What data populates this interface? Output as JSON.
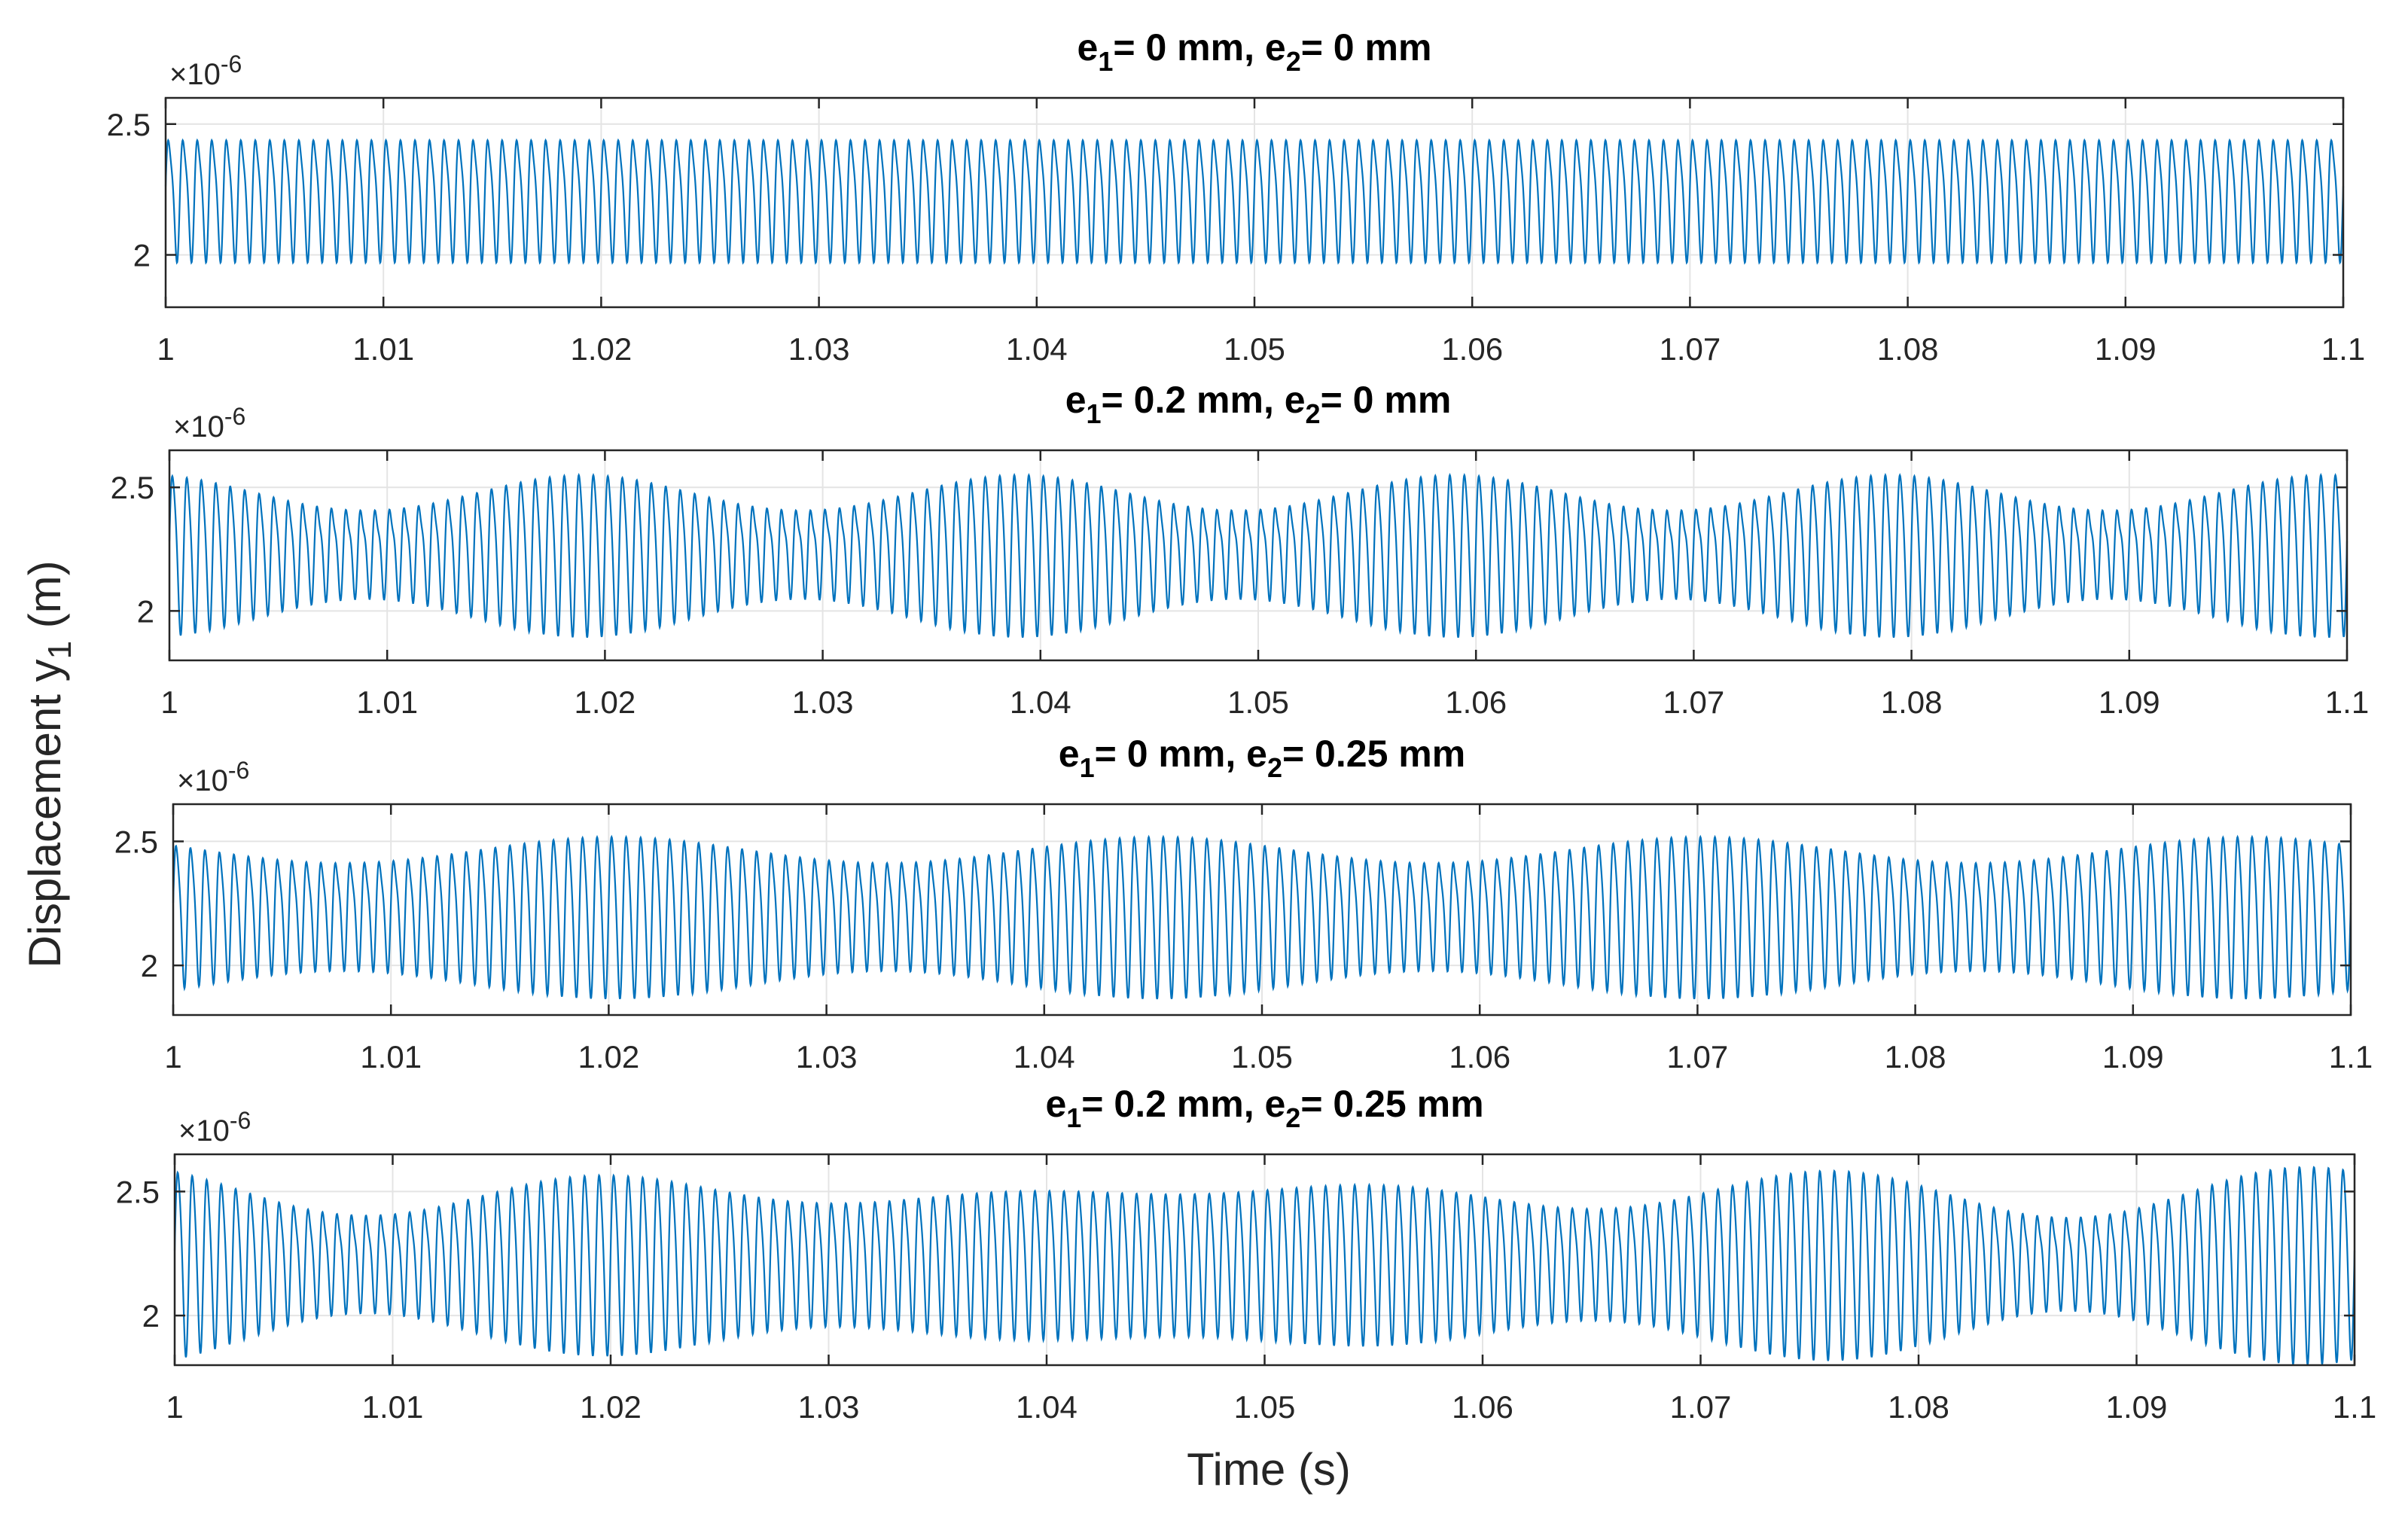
{
  "figure": {
    "ylabel_main": "Displacement y",
    "ylabel_sub": "1",
    "ylabel_tail": " (m)",
    "xlabel": "Time (s)"
  },
  "chart_data": [
    {
      "type": "line",
      "title": {
        "p1": "e",
        "s1": "1",
        "p2": "= 0 mm, e",
        "s2": "2",
        "p3": "= 0 mm"
      },
      "exponent": {
        "base": "×10",
        "power": "-6"
      },
      "xlim": [
        1,
        1.1
      ],
      "ylim": [
        1.8,
        2.6
      ],
      "xticks": [
        1,
        1.01,
        1.02,
        1.03,
        1.04,
        1.05,
        1.06,
        1.07,
        1.08,
        1.09,
        1.1
      ],
      "xtick_labels": [
        "1",
        "1.01",
        "1.02",
        "1.03",
        "1.04",
        "1.05",
        "1.06",
        "1.07",
        "1.08",
        "1.09",
        "1.1"
      ],
      "yticks": [
        2,
        2.5
      ],
      "ytick_labels": [
        "2",
        "2.5"
      ],
      "series": [
        {
          "name": "y1",
          "color": "#0072BD",
          "mean": 2.23,
          "amplitude": 0.22,
          "carrier_hz": 1500,
          "harmonic": 0.05,
          "modulation": 0,
          "mod_hz": 0,
          "mod2": 0,
          "mod2_hz": 0,
          "phase": 0
        }
      ]
    },
    {
      "type": "line",
      "title": {
        "p1": "e",
        "s1": "1",
        "p2": "= 0.2 mm, e",
        "s2": "2",
        "p3": "= 0 mm"
      },
      "exponent": {
        "base": "×10",
        "power": "-6"
      },
      "xlim": [
        1,
        1.1
      ],
      "ylim": [
        1.8,
        2.65
      ],
      "xticks": [
        1,
        1.01,
        1.02,
        1.03,
        1.04,
        1.05,
        1.06,
        1.07,
        1.08,
        1.09,
        1.1
      ],
      "xtick_labels": [
        "1",
        "1.01",
        "1.02",
        "1.03",
        "1.04",
        "1.05",
        "1.06",
        "1.07",
        "1.08",
        "1.09",
        "1.1"
      ],
      "yticks": [
        2,
        2.5
      ],
      "ytick_labels": [
        "2",
        "2.5"
      ],
      "series": [
        {
          "name": "y1",
          "color": "#0072BD",
          "mean": 2.25,
          "amplitude": 0.24,
          "carrier_hz": 1500,
          "harmonic": 0.05,
          "modulation": 0.33,
          "mod_hz": 50,
          "mod2": 0,
          "mod2_hz": 0,
          "phase": 0.3
        }
      ]
    },
    {
      "type": "line",
      "title": {
        "p1": "e",
        "s1": "1",
        "p2": "= 0 mm, e",
        "s2": "2",
        "p3": "= 0.25 mm"
      },
      "exponent": {
        "base": "×10",
        "power": "-6"
      },
      "xlim": [
        1,
        1.1
      ],
      "ylim": [
        1.8,
        2.65
      ],
      "xticks": [
        1,
        1.01,
        1.02,
        1.03,
        1.04,
        1.05,
        1.06,
        1.07,
        1.08,
        1.09,
        1.1
      ],
      "xtick_labels": [
        "1",
        "1.01",
        "1.02",
        "1.03",
        "1.04",
        "1.05",
        "1.06",
        "1.07",
        "1.08",
        "1.09",
        "1.1"
      ],
      "yticks": [
        2,
        2.5
      ],
      "ytick_labels": [
        "2",
        "2.5"
      ],
      "series": [
        {
          "name": "y1",
          "color": "#0072BD",
          "mean": 2.22,
          "amplitude": 0.26,
          "carrier_hz": 1500,
          "harmonic": 0.05,
          "modulation": 0.22,
          "mod_hz": 40,
          "mod2": 0,
          "mod2_hz": 0,
          "phase": 1.2
        }
      ]
    },
    {
      "type": "line",
      "title": {
        "p1": "e",
        "s1": "1",
        "p2": "= 0.2 mm, e",
        "s2": "2",
        "p3": "= 0.25 mm"
      },
      "exponent": {
        "base": "×10",
        "power": "-6"
      },
      "xlim": [
        1,
        1.1
      ],
      "ylim": [
        1.8,
        2.65
      ],
      "xticks": [
        1,
        1.01,
        1.02,
        1.03,
        1.04,
        1.05,
        1.06,
        1.07,
        1.08,
        1.09,
        1.1
      ],
      "xtick_labels": [
        "1",
        "1.01",
        "1.02",
        "1.03",
        "1.04",
        "1.05",
        "1.06",
        "1.07",
        "1.08",
        "1.09",
        "1.1"
      ],
      "yticks": [
        2,
        2.5
      ],
      "ytick_labels": [
        "2",
        "2.5"
      ],
      "series": [
        {
          "name": "y1",
          "color": "#0072BD",
          "mean": 2.23,
          "amplitude": 0.28,
          "carrier_hz": 1500,
          "harmonic": 0.05,
          "modulation": 0.2,
          "mod_hz": 50,
          "mod2": 0.2,
          "mod2_hz": 40,
          "phase": 0.8
        }
      ]
    }
  ]
}
